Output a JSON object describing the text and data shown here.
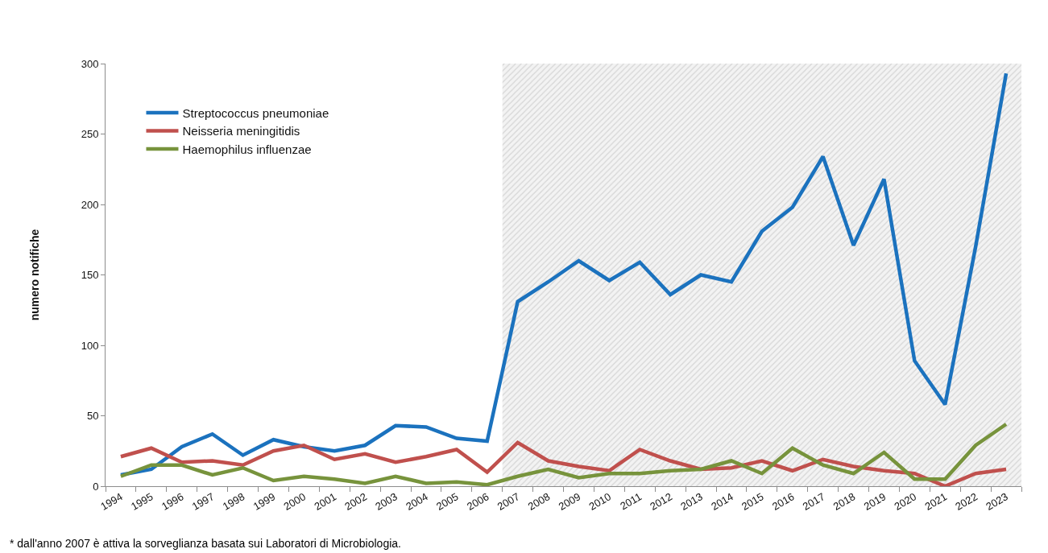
{
  "chart_data": {
    "type": "line",
    "ylabel": "numero notifiche",
    "annotations": [
      "* dall'anno 2007 è attiva la sorveglianza basata sui Laboratori di Microbiologia."
    ],
    "categories": [
      "1994",
      "1995",
      "1996",
      "1997",
      "1998",
      "1999",
      "2000",
      "2001",
      "2002",
      "2003",
      "2004",
      "2005",
      "2006",
      "2007",
      "2008",
      "2009",
      "2010",
      "2011",
      "2012",
      "2013",
      "2014",
      "2015",
      "2016",
      "2017",
      "2018",
      "2019",
      "2020",
      "2021",
      "2022",
      "2023"
    ],
    "series": [
      {
        "name": "Streptococcus pneumoniae",
        "color": "#1b72be",
        "values": [
          8,
          12,
          28,
          37,
          22,
          33,
          28,
          25,
          29,
          43,
          42,
          34,
          32,
          131,
          145,
          160,
          146,
          159,
          136,
          150,
          145,
          181,
          198,
          234,
          171,
          218,
          89,
          58,
          170,
          293
        ]
      },
      {
        "name": "Neisseria meningitidis",
        "color": "#c0504d",
        "values": [
          21,
          27,
          17,
          18,
          15,
          25,
          29,
          19,
          23,
          17,
          21,
          26,
          10,
          31,
          18,
          14,
          11,
          26,
          18,
          12,
          13,
          18,
          11,
          19,
          14,
          11,
          9,
          0,
          9,
          12
        ]
      },
      {
        "name": "Haemophilus influenzae",
        "color": "#77933c",
        "values": [
          7,
          15,
          15,
          8,
          13,
          4,
          7,
          5,
          2,
          7,
          2,
          3,
          1,
          7,
          12,
          6,
          9,
          9,
          11,
          12,
          18,
          9,
          27,
          15,
          9,
          24,
          5,
          5,
          29,
          44
        ]
      }
    ],
    "ylim": [
      0,
      300
    ],
    "yticks": [
      0,
      50,
      100,
      150,
      200,
      250,
      300
    ],
    "bands": [
      {
        "axis": "x",
        "from": "2007",
        "to": "2023",
        "color": "#b8b8b8"
      }
    ],
    "grid": false,
    "legend": "top left",
    "line_style": "solid"
  }
}
